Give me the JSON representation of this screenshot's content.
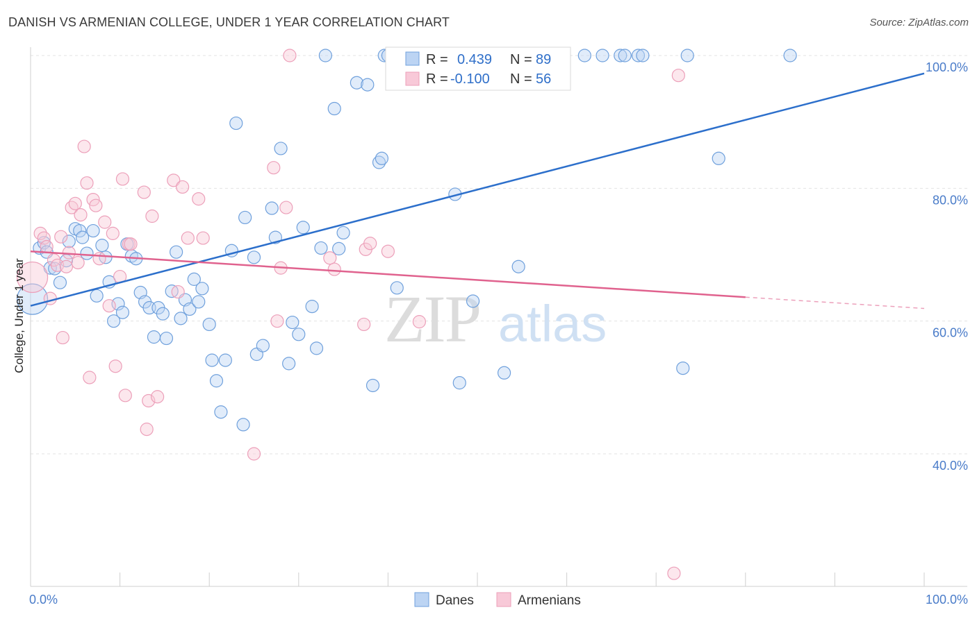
{
  "title": "DANISH VS ARMENIAN COLLEGE, UNDER 1 YEAR CORRELATION CHART",
  "source": "Source: ZipAtlas.com",
  "watermark": {
    "zip": "ZIP",
    "atlas": "atlas"
  },
  "chart_data": {
    "type": "scatter",
    "ylabel": "College, Under 1 year",
    "xlim": [
      0,
      100
    ],
    "ylim": [
      20,
      102
    ],
    "x_tick_labels": [
      {
        "value": 0,
        "label": "0.0%"
      },
      {
        "value": 100,
        "label": "100.0%"
      }
    ],
    "y_tick_labels": [
      {
        "value": 100,
        "label": "100.0%"
      },
      {
        "value": 80,
        "label": "80.0%"
      },
      {
        "value": 60,
        "label": "60.0%"
      },
      {
        "value": 40,
        "label": "40.0%"
      }
    ],
    "legend": {
      "rows": [
        {
          "r_label": "R =",
          "r_value": "0.439",
          "n_label": "N =",
          "n_value": "89"
        },
        {
          "r_label": "R =",
          "r_value": "-0.100",
          "n_label": "N =",
          "n_value": "56"
        }
      ]
    },
    "series": [
      {
        "name": "Danes",
        "color": "#6fa0dc",
        "fill": "#bcd4f3",
        "line_color": "#2c6fcb",
        "trend": {
          "x0": 0,
          "y0": 62.3,
          "x1": 100,
          "y1": 97.3
        },
        "points": [
          [
            0.2,
            63.3
          ],
          [
            1,
            71
          ],
          [
            1.5,
            71.8
          ],
          [
            1.8,
            70.4
          ],
          [
            2.2,
            68
          ],
          [
            2.7,
            67.9
          ],
          [
            3.3,
            65.8
          ],
          [
            4,
            69.1
          ],
          [
            4.3,
            72
          ],
          [
            5,
            73.9
          ],
          [
            5.5,
            73.6
          ],
          [
            5.8,
            72.6
          ],
          [
            6.3,
            70.2
          ],
          [
            7,
            73.6
          ],
          [
            7.4,
            63.8
          ],
          [
            8,
            71.4
          ],
          [
            8.4,
            69.6
          ],
          [
            8.8,
            65.9
          ],
          [
            9.3,
            60
          ],
          [
            9.8,
            62.6
          ],
          [
            10.3,
            61.3
          ],
          [
            10.8,
            71.6
          ],
          [
            11.3,
            69.8
          ],
          [
            11.8,
            69.4
          ],
          [
            12.3,
            64.3
          ],
          [
            12.8,
            62.9
          ],
          [
            13.3,
            62
          ],
          [
            13.8,
            57.6
          ],
          [
            14.3,
            62
          ],
          [
            14.8,
            61.1
          ],
          [
            15.2,
            57.4
          ],
          [
            15.8,
            64.5
          ],
          [
            16.3,
            70.4
          ],
          [
            16.8,
            60.4
          ],
          [
            17.3,
            63.2
          ],
          [
            17.8,
            61.8
          ],
          [
            18.3,
            66.3
          ],
          [
            18.8,
            62.9
          ],
          [
            19.2,
            64.9
          ],
          [
            20,
            59.5
          ],
          [
            20.3,
            54.1
          ],
          [
            20.8,
            51
          ],
          [
            21.3,
            46.3
          ],
          [
            21.8,
            54.1
          ],
          [
            22.5,
            70.6
          ],
          [
            23,
            89.8
          ],
          [
            23.8,
            44.4
          ],
          [
            24,
            75.6
          ],
          [
            25,
            69.6
          ],
          [
            25.3,
            55
          ],
          [
            26,
            56.3
          ],
          [
            27,
            77
          ],
          [
            27.4,
            72.6
          ],
          [
            28,
            86
          ],
          [
            28.9,
            53.6
          ],
          [
            29.3,
            59.8
          ],
          [
            30,
            58
          ],
          [
            30.5,
            74.1
          ],
          [
            31.5,
            62.2
          ],
          [
            32,
            55.9
          ],
          [
            32.5,
            71
          ],
          [
            33,
            100
          ],
          [
            34,
            92
          ],
          [
            34.5,
            70.9
          ],
          [
            35,
            73.3
          ],
          [
            36.5,
            95.9
          ],
          [
            37.7,
            95.6
          ],
          [
            38.3,
            50.3
          ],
          [
            39,
            83.9
          ],
          [
            39.3,
            84.5
          ],
          [
            39.6,
            100
          ],
          [
            40,
            100
          ],
          [
            41,
            65
          ],
          [
            43,
            100
          ],
          [
            47.5,
            79.1
          ],
          [
            48,
            50.7
          ],
          [
            49.5,
            63
          ],
          [
            53,
            52.2
          ],
          [
            54.6,
            68.2
          ],
          [
            62,
            100
          ],
          [
            64,
            100
          ],
          [
            66,
            100
          ],
          [
            66.5,
            100
          ],
          [
            68,
            100
          ],
          [
            68.5,
            100
          ],
          [
            73,
            52.9
          ],
          [
            73.5,
            100
          ],
          [
            77,
            84.5
          ],
          [
            85,
            100
          ]
        ]
      },
      {
        "name": "Armenians",
        "color": "#ec9fb9",
        "fill": "#f8c9d8",
        "line_color": "#e0628e",
        "trend": {
          "x0": 0,
          "y0": 70.5,
          "x1": 80,
          "y1": 63.6
        },
        "trend_dashed": {
          "x0": 80,
          "y0": 63.6,
          "x1": 100,
          "y1": 61.9
        },
        "points": [
          [
            0.2,
            66.6
          ],
          [
            1.1,
            73.2
          ],
          [
            1.5,
            72.5
          ],
          [
            1.8,
            71.2
          ],
          [
            2.2,
            63.4
          ],
          [
            2.6,
            69.2
          ],
          [
            3,
            68.4
          ],
          [
            3.4,
            72.7
          ],
          [
            3.6,
            57.5
          ],
          [
            4,
            68.2
          ],
          [
            4.3,
            70.3
          ],
          [
            4.6,
            77.1
          ],
          [
            5,
            77.7
          ],
          [
            5.3,
            68.8
          ],
          [
            5.6,
            76
          ],
          [
            6,
            86.3
          ],
          [
            6.3,
            80.8
          ],
          [
            6.6,
            51.5
          ],
          [
            7,
            78.3
          ],
          [
            7.3,
            77.4
          ],
          [
            7.7,
            69.4
          ],
          [
            8.3,
            74.9
          ],
          [
            8.8,
            62.3
          ],
          [
            9.2,
            73.2
          ],
          [
            9.5,
            53.2
          ],
          [
            10,
            66.7
          ],
          [
            10.3,
            81.4
          ],
          [
            10.6,
            48.8
          ],
          [
            11,
            71.6
          ],
          [
            11.2,
            71.6
          ],
          [
            12.7,
            79.4
          ],
          [
            13,
            43.7
          ],
          [
            13.2,
            48
          ],
          [
            13.6,
            75.8
          ],
          [
            14.2,
            48.6
          ],
          [
            16,
            81.2
          ],
          [
            16.5,
            64.4
          ],
          [
            17,
            80.2
          ],
          [
            17.6,
            72.5
          ],
          [
            18.8,
            78.4
          ],
          [
            19.3,
            72.5
          ],
          [
            25,
            40
          ],
          [
            27.2,
            83.1
          ],
          [
            27.6,
            60
          ],
          [
            28,
            68
          ],
          [
            28.6,
            77.1
          ],
          [
            29,
            100
          ],
          [
            33.5,
            69.5
          ],
          [
            34,
            67.8
          ],
          [
            37.3,
            59.5
          ],
          [
            37.5,
            70.8
          ],
          [
            38,
            71.7
          ],
          [
            40,
            70.5
          ],
          [
            43.5,
            59.9
          ],
          [
            72,
            22
          ],
          [
            72.5,
            97
          ]
        ]
      }
    ]
  },
  "bottom_legend": {
    "items": [
      {
        "label": "Danes"
      },
      {
        "label": "Armenians"
      }
    ]
  }
}
